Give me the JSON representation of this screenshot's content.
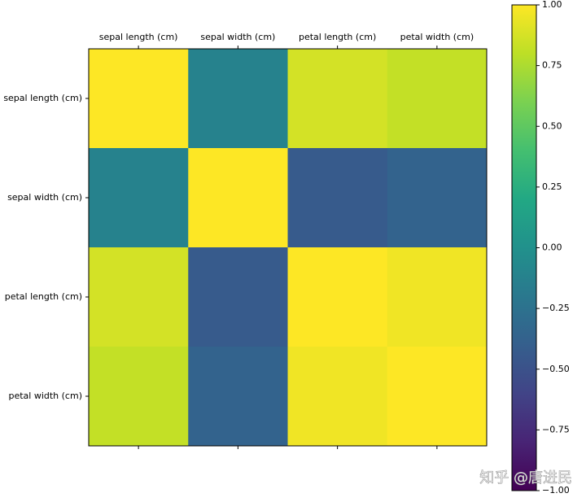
{
  "chart_data": {
    "type": "heatmap",
    "x_categories": [
      "sepal length (cm)",
      "sepal width (cm)",
      "petal length (cm)",
      "petal width (cm)"
    ],
    "y_categories": [
      "sepal length (cm)",
      "sepal width (cm)",
      "petal length (cm)",
      "petal width (cm)"
    ],
    "values": [
      [
        1.0,
        -0.12,
        0.87,
        0.82
      ],
      [
        -0.12,
        1.0,
        -0.43,
        -0.37
      ],
      [
        0.87,
        -0.43,
        1.0,
        0.96
      ],
      [
        0.82,
        -0.37,
        0.96,
        1.0
      ]
    ],
    "colormap": "viridis",
    "clim": [
      -1,
      1
    ],
    "colorbar_ticks": [
      {
        "value": -1,
        "label": "−1.00"
      },
      {
        "value": -0.75,
        "label": "−0.75"
      },
      {
        "value": -0.5,
        "label": "−0.50"
      },
      {
        "value": -0.25,
        "label": "−0.25"
      },
      {
        "value": 0,
        "label": "0.00"
      },
      {
        "value": 0.25,
        "label": "0.25"
      },
      {
        "value": 0.5,
        "label": "0.50"
      },
      {
        "value": 0.75,
        "label": "0.75"
      },
      {
        "value": 1,
        "label": "1.00"
      }
    ],
    "watermark": "知乎 @唐进民"
  }
}
